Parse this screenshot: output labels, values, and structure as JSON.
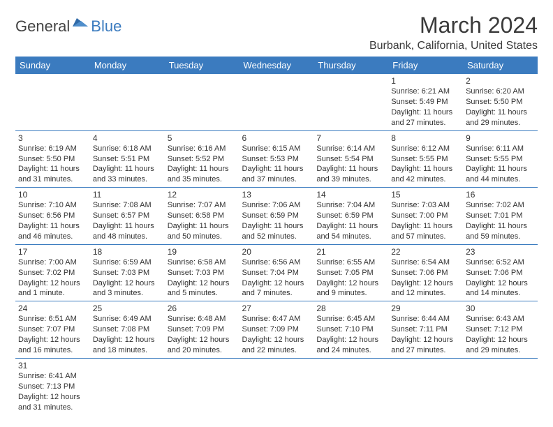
{
  "logo": {
    "textDark": "General",
    "textBlue": "Blue"
  },
  "title": "March 2024",
  "location": "Burbank, California, United States",
  "colors": {
    "headerBg": "#3b7bbf",
    "headerText": "#ffffff",
    "cellBorder": "#3b7bbf",
    "bodyText": "#333333",
    "pageBg": "#ffffff"
  },
  "fonts": {
    "title_pt": 32,
    "location_pt": 16,
    "dayHeader_pt": 13,
    "cell_pt": 11
  },
  "dayHeaders": [
    "Sunday",
    "Monday",
    "Tuesday",
    "Wednesday",
    "Thursday",
    "Friday",
    "Saturday"
  ],
  "weeks": [
    [
      null,
      null,
      null,
      null,
      null,
      {
        "d": "1",
        "sr": "Sunrise: 6:21 AM",
        "ss": "Sunset: 5:49 PM",
        "dl1": "Daylight: 11 hours",
        "dl2": "and 27 minutes."
      },
      {
        "d": "2",
        "sr": "Sunrise: 6:20 AM",
        "ss": "Sunset: 5:50 PM",
        "dl1": "Daylight: 11 hours",
        "dl2": "and 29 minutes."
      }
    ],
    [
      {
        "d": "3",
        "sr": "Sunrise: 6:19 AM",
        "ss": "Sunset: 5:50 PM",
        "dl1": "Daylight: 11 hours",
        "dl2": "and 31 minutes."
      },
      {
        "d": "4",
        "sr": "Sunrise: 6:18 AM",
        "ss": "Sunset: 5:51 PM",
        "dl1": "Daylight: 11 hours",
        "dl2": "and 33 minutes."
      },
      {
        "d": "5",
        "sr": "Sunrise: 6:16 AM",
        "ss": "Sunset: 5:52 PM",
        "dl1": "Daylight: 11 hours",
        "dl2": "and 35 minutes."
      },
      {
        "d": "6",
        "sr": "Sunrise: 6:15 AM",
        "ss": "Sunset: 5:53 PM",
        "dl1": "Daylight: 11 hours",
        "dl2": "and 37 minutes."
      },
      {
        "d": "7",
        "sr": "Sunrise: 6:14 AM",
        "ss": "Sunset: 5:54 PM",
        "dl1": "Daylight: 11 hours",
        "dl2": "and 39 minutes."
      },
      {
        "d": "8",
        "sr": "Sunrise: 6:12 AM",
        "ss": "Sunset: 5:55 PM",
        "dl1": "Daylight: 11 hours",
        "dl2": "and 42 minutes."
      },
      {
        "d": "9",
        "sr": "Sunrise: 6:11 AM",
        "ss": "Sunset: 5:55 PM",
        "dl1": "Daylight: 11 hours",
        "dl2": "and 44 minutes."
      }
    ],
    [
      {
        "d": "10",
        "sr": "Sunrise: 7:10 AM",
        "ss": "Sunset: 6:56 PM",
        "dl1": "Daylight: 11 hours",
        "dl2": "and 46 minutes."
      },
      {
        "d": "11",
        "sr": "Sunrise: 7:08 AM",
        "ss": "Sunset: 6:57 PM",
        "dl1": "Daylight: 11 hours",
        "dl2": "and 48 minutes."
      },
      {
        "d": "12",
        "sr": "Sunrise: 7:07 AM",
        "ss": "Sunset: 6:58 PM",
        "dl1": "Daylight: 11 hours",
        "dl2": "and 50 minutes."
      },
      {
        "d": "13",
        "sr": "Sunrise: 7:06 AM",
        "ss": "Sunset: 6:59 PM",
        "dl1": "Daylight: 11 hours",
        "dl2": "and 52 minutes."
      },
      {
        "d": "14",
        "sr": "Sunrise: 7:04 AM",
        "ss": "Sunset: 6:59 PM",
        "dl1": "Daylight: 11 hours",
        "dl2": "and 54 minutes."
      },
      {
        "d": "15",
        "sr": "Sunrise: 7:03 AM",
        "ss": "Sunset: 7:00 PM",
        "dl1": "Daylight: 11 hours",
        "dl2": "and 57 minutes."
      },
      {
        "d": "16",
        "sr": "Sunrise: 7:02 AM",
        "ss": "Sunset: 7:01 PM",
        "dl1": "Daylight: 11 hours",
        "dl2": "and 59 minutes."
      }
    ],
    [
      {
        "d": "17",
        "sr": "Sunrise: 7:00 AM",
        "ss": "Sunset: 7:02 PM",
        "dl1": "Daylight: 12 hours",
        "dl2": "and 1 minute."
      },
      {
        "d": "18",
        "sr": "Sunrise: 6:59 AM",
        "ss": "Sunset: 7:03 PM",
        "dl1": "Daylight: 12 hours",
        "dl2": "and 3 minutes."
      },
      {
        "d": "19",
        "sr": "Sunrise: 6:58 AM",
        "ss": "Sunset: 7:03 PM",
        "dl1": "Daylight: 12 hours",
        "dl2": "and 5 minutes."
      },
      {
        "d": "20",
        "sr": "Sunrise: 6:56 AM",
        "ss": "Sunset: 7:04 PM",
        "dl1": "Daylight: 12 hours",
        "dl2": "and 7 minutes."
      },
      {
        "d": "21",
        "sr": "Sunrise: 6:55 AM",
        "ss": "Sunset: 7:05 PM",
        "dl1": "Daylight: 12 hours",
        "dl2": "and 9 minutes."
      },
      {
        "d": "22",
        "sr": "Sunrise: 6:54 AM",
        "ss": "Sunset: 7:06 PM",
        "dl1": "Daylight: 12 hours",
        "dl2": "and 12 minutes."
      },
      {
        "d": "23",
        "sr": "Sunrise: 6:52 AM",
        "ss": "Sunset: 7:06 PM",
        "dl1": "Daylight: 12 hours",
        "dl2": "and 14 minutes."
      }
    ],
    [
      {
        "d": "24",
        "sr": "Sunrise: 6:51 AM",
        "ss": "Sunset: 7:07 PM",
        "dl1": "Daylight: 12 hours",
        "dl2": "and 16 minutes."
      },
      {
        "d": "25",
        "sr": "Sunrise: 6:49 AM",
        "ss": "Sunset: 7:08 PM",
        "dl1": "Daylight: 12 hours",
        "dl2": "and 18 minutes."
      },
      {
        "d": "26",
        "sr": "Sunrise: 6:48 AM",
        "ss": "Sunset: 7:09 PM",
        "dl1": "Daylight: 12 hours",
        "dl2": "and 20 minutes."
      },
      {
        "d": "27",
        "sr": "Sunrise: 6:47 AM",
        "ss": "Sunset: 7:09 PM",
        "dl1": "Daylight: 12 hours",
        "dl2": "and 22 minutes."
      },
      {
        "d": "28",
        "sr": "Sunrise: 6:45 AM",
        "ss": "Sunset: 7:10 PM",
        "dl1": "Daylight: 12 hours",
        "dl2": "and 24 minutes."
      },
      {
        "d": "29",
        "sr": "Sunrise: 6:44 AM",
        "ss": "Sunset: 7:11 PM",
        "dl1": "Daylight: 12 hours",
        "dl2": "and 27 minutes."
      },
      {
        "d": "30",
        "sr": "Sunrise: 6:43 AM",
        "ss": "Sunset: 7:12 PM",
        "dl1": "Daylight: 12 hours",
        "dl2": "and 29 minutes."
      }
    ],
    [
      {
        "d": "31",
        "sr": "Sunrise: 6:41 AM",
        "ss": "Sunset: 7:13 PM",
        "dl1": "Daylight: 12 hours",
        "dl2": "and 31 minutes."
      },
      null,
      null,
      null,
      null,
      null,
      null
    ]
  ]
}
